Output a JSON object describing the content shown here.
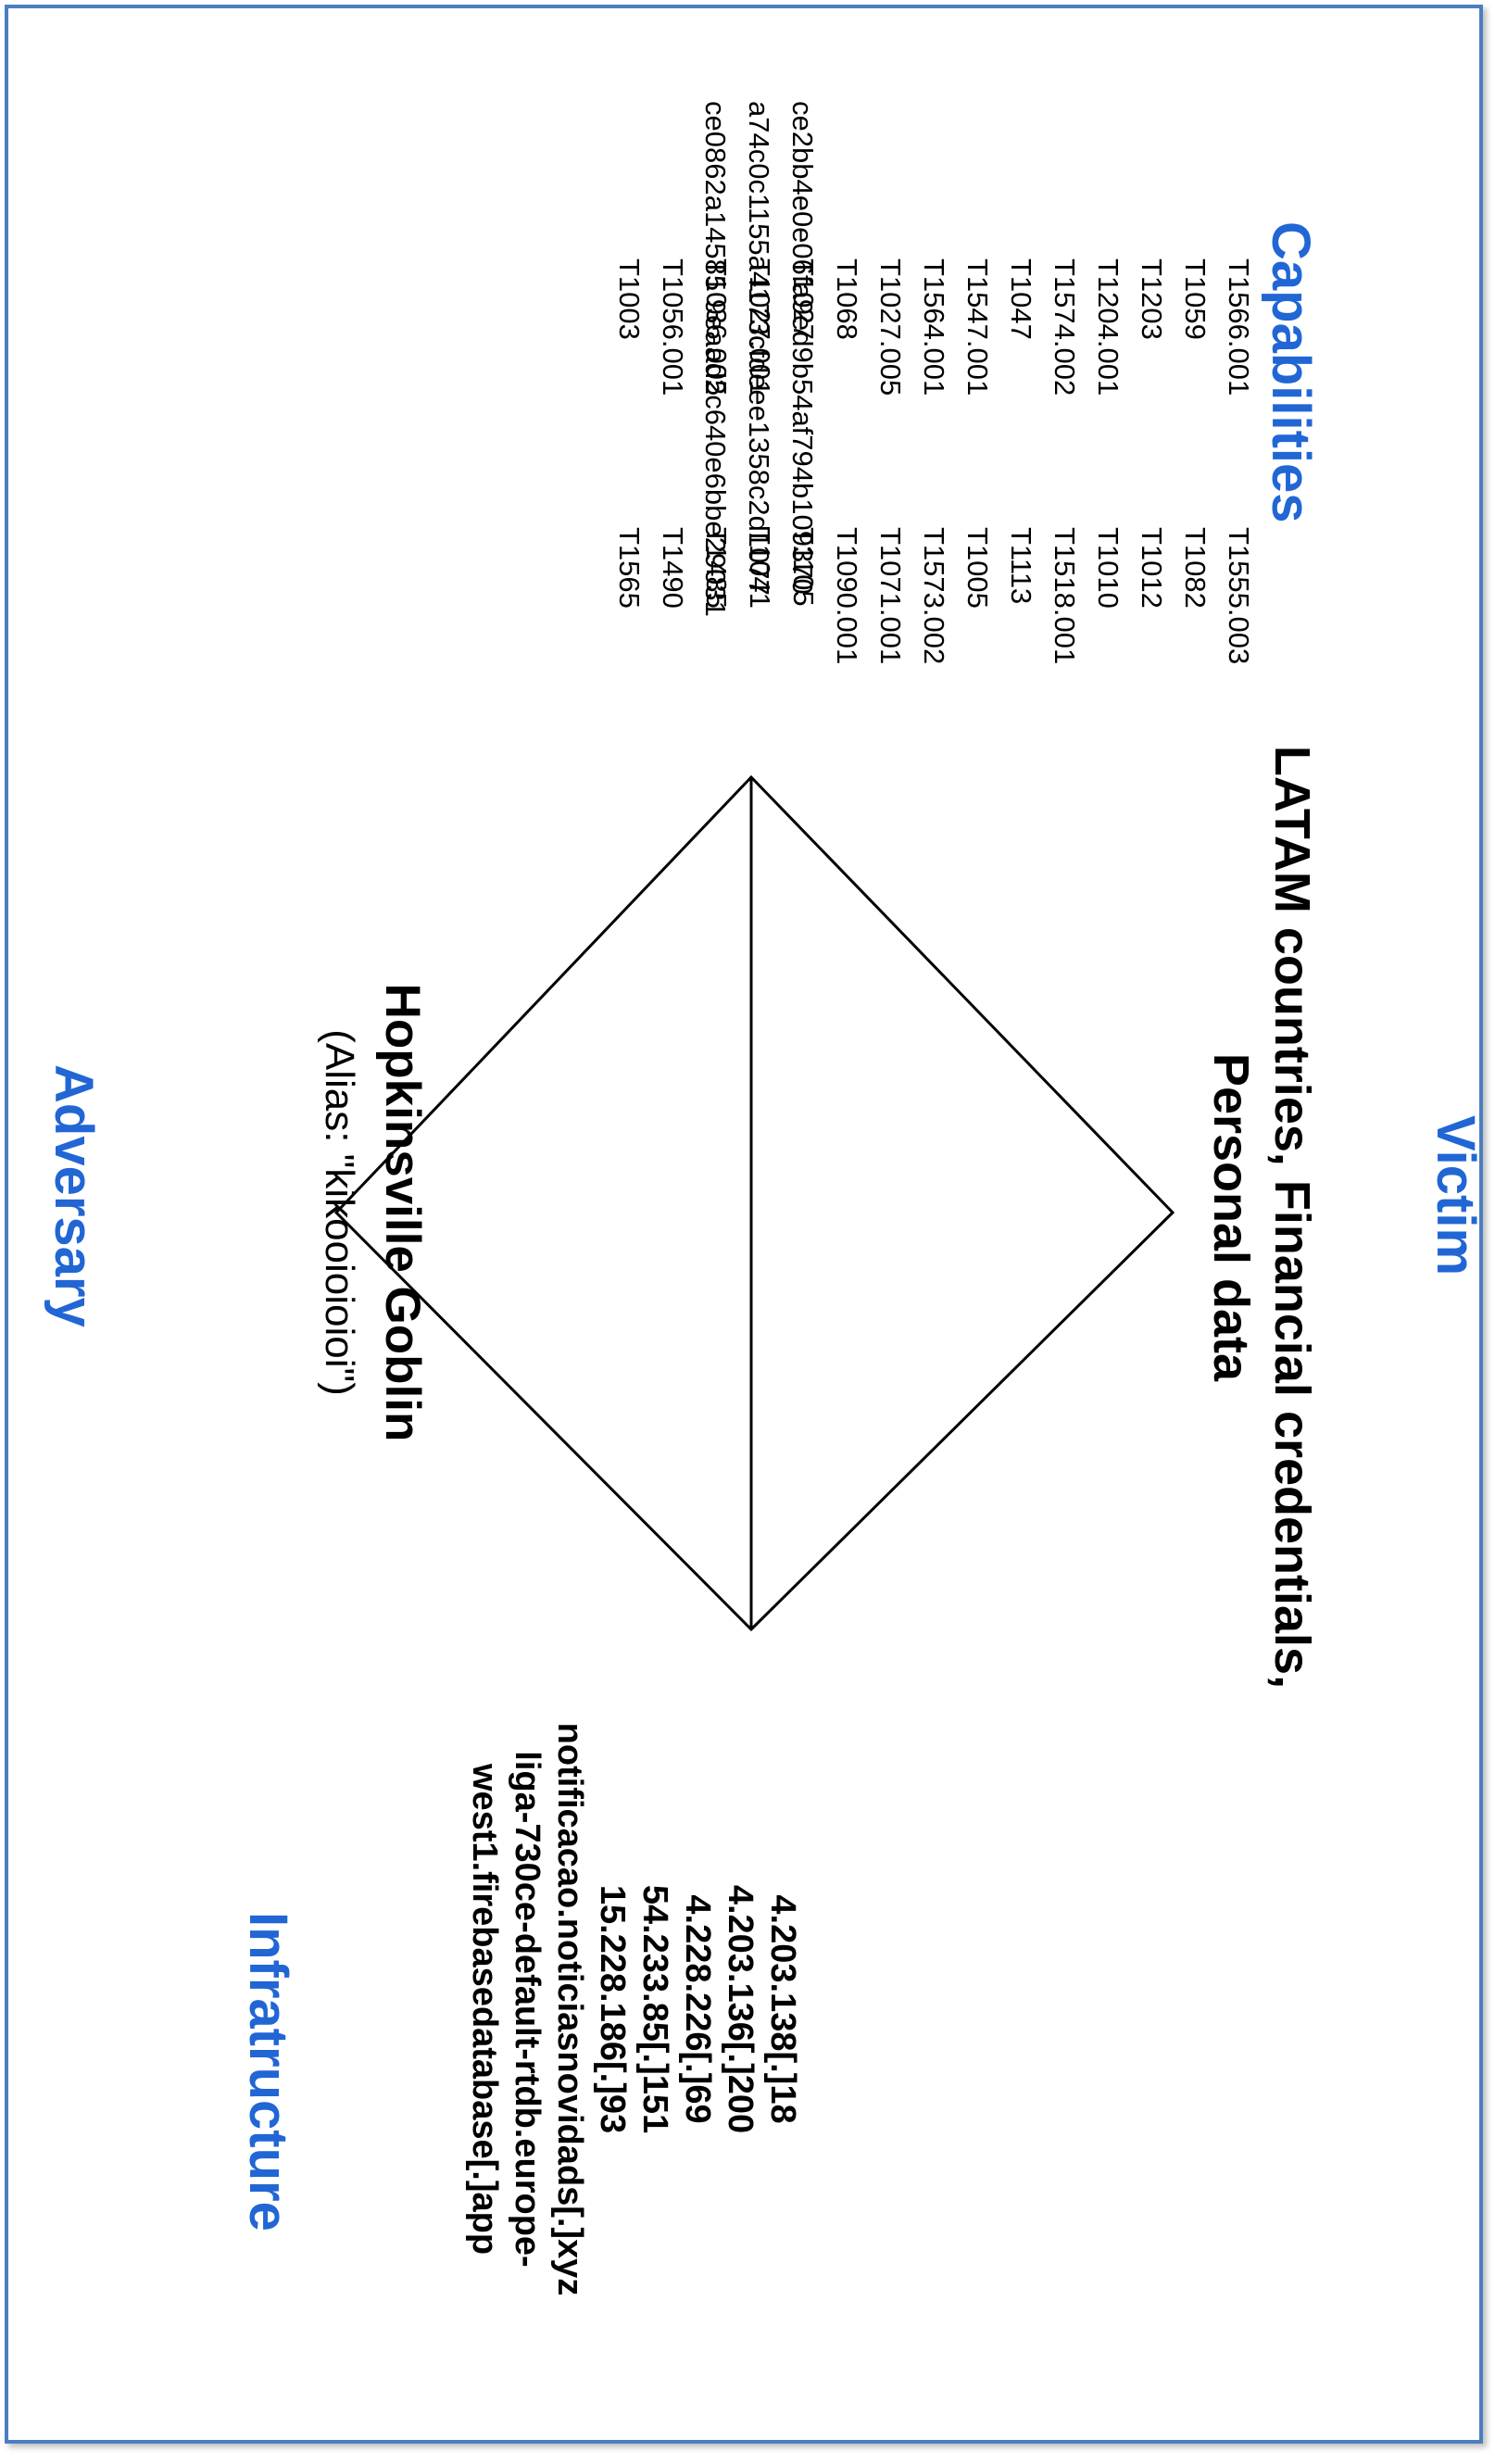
{
  "labels": {
    "capabilities": "Capabilities",
    "adversary": "Adversary",
    "infrastructure": "Infratructure",
    "victim": "Victim"
  },
  "adversary": {
    "name": "Hopkinsville Goblin",
    "alias": "(Alias: \"kikooioioioi\")"
  },
  "capabilities": {
    "techniques": [
      [
        "T1566.001",
        "T1555.003"
      ],
      [
        "T1059",
        "T1082"
      ],
      [
        "T1203",
        "T1012"
      ],
      [
        "T1204.001",
        "T1010"
      ],
      [
        "T1574.002",
        "T1518.001"
      ],
      [
        "T1047",
        "T1113"
      ],
      [
        "T1547.001",
        "T1005"
      ],
      [
        "T1564.001",
        "T1573.002"
      ],
      [
        "T1027.005",
        "T1071.001"
      ],
      [
        "T1068",
        "T1090.001"
      ],
      [
        "T1027",
        "T1105"
      ],
      [
        "T1027.001",
        "T1041"
      ],
      [
        "T1036.005",
        "T1485"
      ],
      [
        "T1056.001",
        "T1490"
      ],
      [
        "T1003",
        "T1565"
      ]
    ],
    "hashes": [
      "ce2bb4e0e06fa9ed9b54af794b109370",
      "a74c0c1155a4173cfdeee1358c2d1077",
      "ce0862a14585 9eaad2c640e6bbe29031"
    ]
  },
  "victim": {
    "line1": "LATAM countries, Financial credentials,",
    "line2": "Personal data"
  },
  "infrastructure": {
    "items": [
      "4.203.138[.]18",
      "4.203.136[.]200",
      "4.228.226[.]69",
      "54.233.85[.]151",
      "15.228.186[.]93",
      "notificacao.noticiasnovidads[.]xyz",
      "liga-730ce-default-rtdb.europe-west1.firebasedatabase[.]app"
    ]
  },
  "colors": {
    "label": "#2166d4",
    "frame": "#4a7ec0",
    "line": "#000000"
  }
}
